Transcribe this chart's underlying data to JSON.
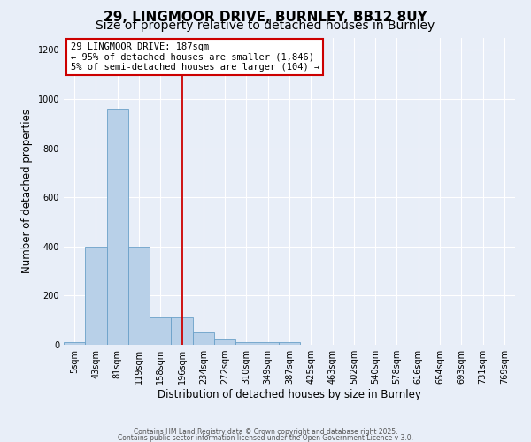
{
  "title_line1": "29, LINGMOOR DRIVE, BURNLEY, BB12 8UY",
  "title_line2": "Size of property relative to detached houses in Burnley",
  "xlabel": "Distribution of detached houses by size in Burnley",
  "ylabel": "Number of detached properties",
  "categories": [
    "5sqm",
    "43sqm",
    "81sqm",
    "119sqm",
    "158sqm",
    "196sqm",
    "234sqm",
    "272sqm",
    "310sqm",
    "349sqm",
    "387sqm",
    "425sqm",
    "463sqm",
    "502sqm",
    "540sqm",
    "578sqm",
    "616sqm",
    "654sqm",
    "693sqm",
    "731sqm",
    "769sqm"
  ],
  "values": [
    10,
    400,
    960,
    400,
    110,
    110,
    50,
    20,
    10,
    10,
    10,
    0,
    0,
    0,
    0,
    0,
    0,
    0,
    0,
    0,
    0
  ],
  "bar_color": "#b8d0e8",
  "bar_edge_color": "#6aa0c8",
  "red_line_x": 5.0,
  "annotation_text": "29 LINGMOOR DRIVE: 187sqm\n← 95% of detached houses are smaller (1,846)\n5% of semi-detached houses are larger (104) →",
  "annotation_box_color": "#ffffff",
  "annotation_box_edge_color": "#cc0000",
  "ylim": [
    0,
    1250
  ],
  "yticks": [
    0,
    200,
    400,
    600,
    800,
    1000,
    1200
  ],
  "background_color": "#e8eef8",
  "grid_color": "#ffffff",
  "footer_line1": "Contains HM Land Registry data © Crown copyright and database right 2025.",
  "footer_line2": "Contains public sector information licensed under the Open Government Licence v 3.0.",
  "title_fontsize": 11,
  "subtitle_fontsize": 10,
  "axis_label_fontsize": 8.5,
  "tick_fontsize": 7,
  "annotation_fontsize": 7.5
}
